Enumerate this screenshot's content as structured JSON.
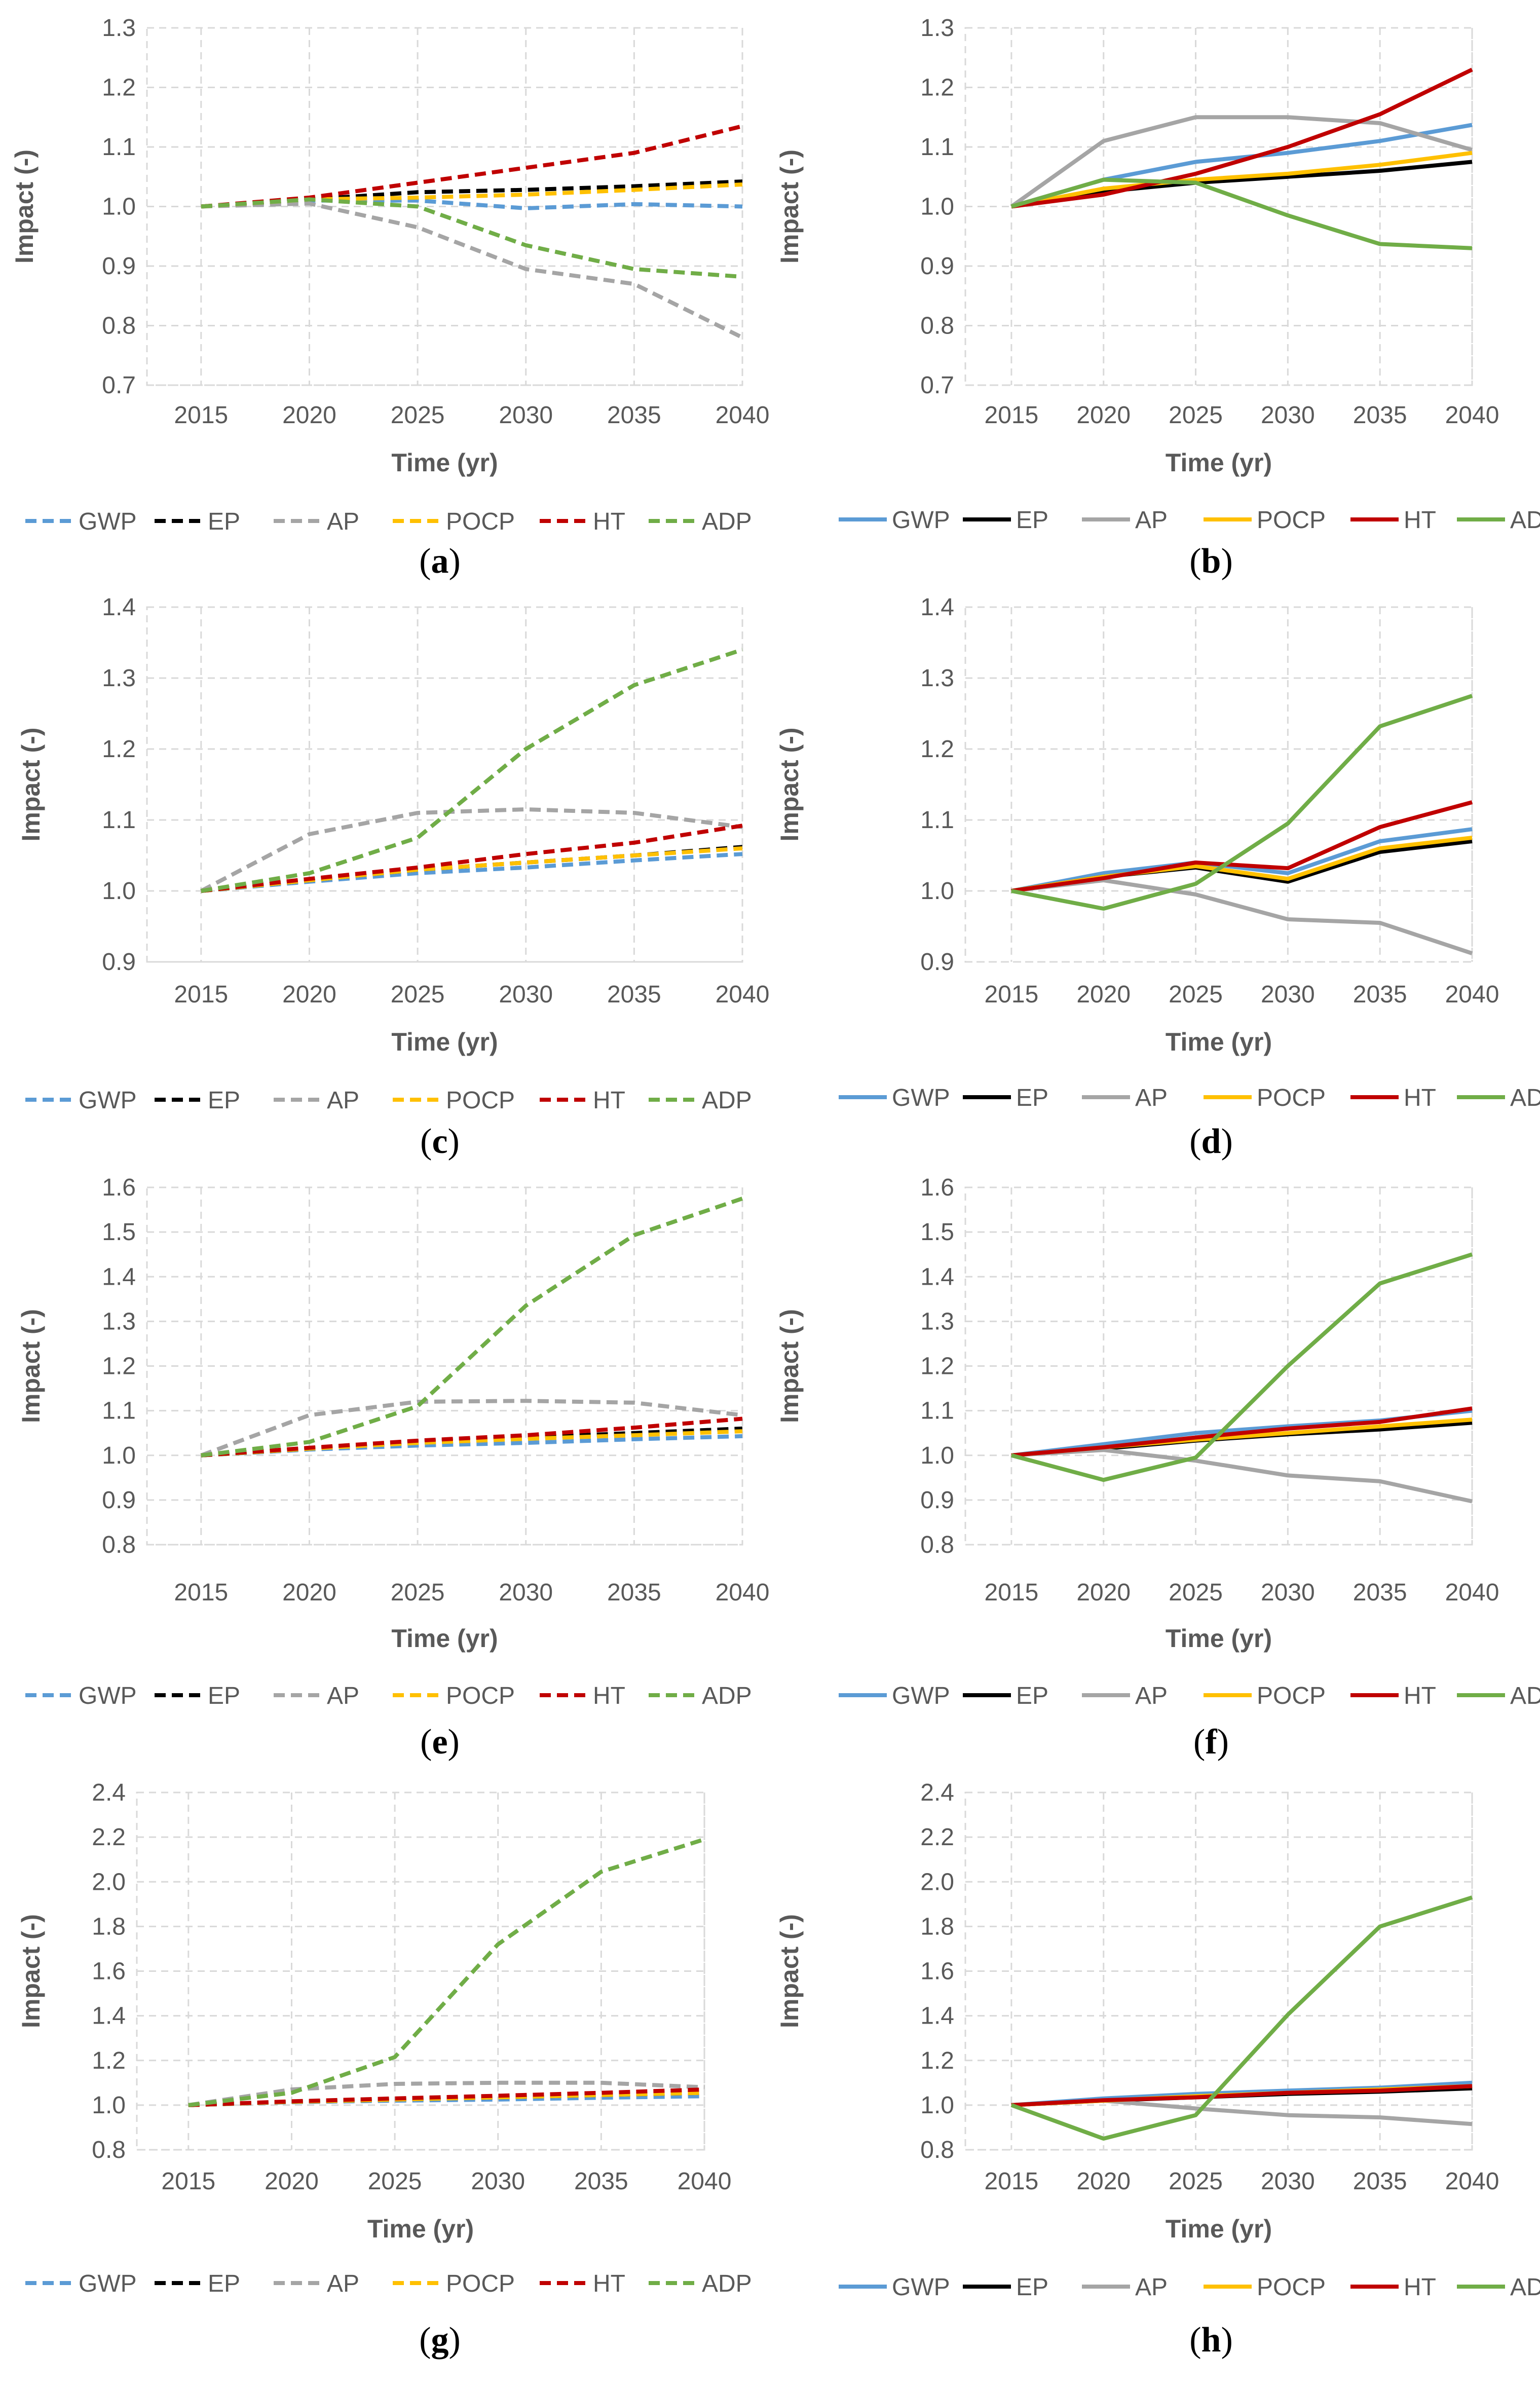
{
  "colors": {
    "GWP": "#5b9bd5",
    "EP": "#000000",
    "AP": "#a5a5a5",
    "POCP": "#ffc000",
    "HT": "#c00000",
    "ADP": "#70ad47",
    "grid": "#d9d9d9",
    "text": "#595959"
  },
  "chart_data": [
    {
      "id": "a",
      "type": "line",
      "label": "a",
      "line_style": "dashed",
      "xlabel": "Time (yr)",
      "ylabel": "Impact (-)",
      "x": [
        2015,
        2020,
        2025,
        2030,
        2035,
        2040
      ],
      "ylim": [
        0.7,
        1.3
      ],
      "yticks": [
        "0.7",
        "0.8",
        "0.9",
        "1.0",
        "1.1",
        "1.2",
        "1.3"
      ],
      "series": [
        {
          "name": "GWP",
          "values": [
            1.0,
            1.01,
            1.01,
            0.997,
            1.004,
            1.0
          ]
        },
        {
          "name": "EP",
          "values": [
            1.0,
            1.012,
            1.024,
            1.028,
            1.034,
            1.042
          ]
        },
        {
          "name": "AP",
          "values": [
            1.0,
            1.005,
            0.965,
            0.895,
            0.87,
            0.78
          ]
        },
        {
          "name": "POCP",
          "values": [
            1.0,
            1.012,
            1.015,
            1.02,
            1.028,
            1.037
          ]
        },
        {
          "name": "HT",
          "values": [
            1.0,
            1.015,
            1.04,
            1.065,
            1.09,
            1.135
          ]
        },
        {
          "name": "ADP",
          "values": [
            1.0,
            1.012,
            1.0,
            0.935,
            0.895,
            0.882
          ]
        }
      ]
    },
    {
      "id": "b",
      "type": "line",
      "label": "b",
      "line_style": "solid",
      "xlabel": "Time (yr)",
      "ylabel": "Impact (-)",
      "x": [
        2015,
        2020,
        2025,
        2030,
        2035,
        2040
      ],
      "ylim": [
        0.7,
        1.3
      ],
      "yticks": [
        "0.7",
        "0.8",
        "0.9",
        "1.0",
        "1.1",
        "1.2",
        "1.3"
      ],
      "series": [
        {
          "name": "GWP",
          "values": [
            1.0,
            1.045,
            1.075,
            1.09,
            1.11,
            1.137
          ]
        },
        {
          "name": "EP",
          "values": [
            1.0,
            1.025,
            1.04,
            1.05,
            1.06,
            1.075
          ]
        },
        {
          "name": "AP",
          "values": [
            1.0,
            1.11,
            1.15,
            1.15,
            1.14,
            1.095
          ]
        },
        {
          "name": "POCP",
          "values": [
            1.0,
            1.03,
            1.045,
            1.055,
            1.07,
            1.09
          ]
        },
        {
          "name": "HT",
          "values": [
            1.0,
            1.02,
            1.055,
            1.1,
            1.155,
            1.23
          ]
        },
        {
          "name": "ADP",
          "values": [
            1.0,
            1.045,
            1.04,
            0.985,
            0.937,
            0.93
          ]
        }
      ]
    },
    {
      "id": "c",
      "type": "line",
      "label": "c",
      "line_style": "dashed",
      "xlabel": "Time (yr)",
      "ylabel": "Impact (-)",
      "x": [
        2015,
        2020,
        2025,
        2030,
        2035,
        2040
      ],
      "ylim": [
        0.9,
        1.4
      ],
      "yticks": [
        "0.9",
        "1.0",
        "1.1",
        "1.2",
        "1.3",
        "1.4"
      ],
      "series": [
        {
          "name": "GWP",
          "values": [
            1.0,
            1.013,
            1.025,
            1.033,
            1.043,
            1.052
          ]
        },
        {
          "name": "EP",
          "values": [
            1.0,
            1.015,
            1.03,
            1.04,
            1.05,
            1.062
          ]
        },
        {
          "name": "AP",
          "values": [
            1.0,
            1.08,
            1.11,
            1.115,
            1.11,
            1.09
          ]
        },
        {
          "name": "POCP",
          "values": [
            1.0,
            1.015,
            1.03,
            1.04,
            1.05,
            1.06
          ]
        },
        {
          "name": "HT",
          "values": [
            1.0,
            1.017,
            1.033,
            1.052,
            1.068,
            1.092
          ]
        },
        {
          "name": "ADP",
          "values": [
            1.0,
            1.025,
            1.075,
            1.2,
            1.29,
            1.34
          ]
        }
      ]
    },
    {
      "id": "d",
      "type": "line",
      "label": "d",
      "line_style": "solid",
      "xlabel": "Time (yr)",
      "ylabel": "Impact (-)",
      "x": [
        2015,
        2020,
        2025,
        2030,
        2035,
        2040
      ],
      "ylim": [
        0.9,
        1.4
      ],
      "yticks": [
        "0.9",
        "1.0",
        "1.1",
        "1.2",
        "1.3",
        "1.4"
      ],
      "series": [
        {
          "name": "GWP",
          "values": [
            1.0,
            1.025,
            1.04,
            1.025,
            1.07,
            1.087
          ]
        },
        {
          "name": "EP",
          "values": [
            1.0,
            1.02,
            1.033,
            1.013,
            1.055,
            1.07
          ]
        },
        {
          "name": "AP",
          "values": [
            1.0,
            1.015,
            0.995,
            0.96,
            0.955,
            0.912
          ]
        },
        {
          "name": "POCP",
          "values": [
            1.0,
            1.02,
            1.035,
            1.017,
            1.06,
            1.075
          ]
        },
        {
          "name": "HT",
          "values": [
            1.0,
            1.018,
            1.04,
            1.032,
            1.09,
            1.125
          ]
        },
        {
          "name": "ADP",
          "values": [
            1.0,
            0.975,
            1.01,
            1.095,
            1.232,
            1.275
          ]
        }
      ]
    },
    {
      "id": "e",
      "type": "line",
      "label": "e",
      "line_style": "dashed",
      "xlabel": "Time (yr)",
      "ylabel": "Impact (-)",
      "x": [
        2015,
        2020,
        2025,
        2030,
        2035,
        2040
      ],
      "ylim": [
        0.8,
        1.6
      ],
      "yticks": [
        "0.8",
        "0.9",
        "1.0",
        "1.1",
        "1.2",
        "1.3",
        "1.4",
        "1.5",
        "1.6"
      ],
      "series": [
        {
          "name": "GWP",
          "values": [
            1.0,
            1.013,
            1.022,
            1.028,
            1.036,
            1.043
          ]
        },
        {
          "name": "EP",
          "values": [
            1.0,
            1.015,
            1.03,
            1.04,
            1.05,
            1.06
          ]
        },
        {
          "name": "AP",
          "values": [
            1.0,
            1.09,
            1.12,
            1.122,
            1.118,
            1.09
          ]
        },
        {
          "name": "POCP",
          "values": [
            1.0,
            1.015,
            1.028,
            1.037,
            1.045,
            1.054
          ]
        },
        {
          "name": "HT",
          "values": [
            1.0,
            1.017,
            1.033,
            1.045,
            1.062,
            1.082
          ]
        },
        {
          "name": "ADP",
          "values": [
            1.0,
            1.03,
            1.11,
            1.335,
            1.493,
            1.575
          ]
        }
      ]
    },
    {
      "id": "f",
      "type": "line",
      "label": "f",
      "line_style": "solid",
      "xlabel": "Time (yr)",
      "ylabel": "Impact (-)",
      "x": [
        2015,
        2020,
        2025,
        2030,
        2035,
        2040
      ],
      "ylim": [
        0.8,
        1.6
      ],
      "yticks": [
        "0.8",
        "0.9",
        "1.0",
        "1.1",
        "1.2",
        "1.3",
        "1.4",
        "1.5",
        "1.6"
      ],
      "series": [
        {
          "name": "GWP",
          "values": [
            1.0,
            1.025,
            1.05,
            1.065,
            1.078,
            1.1
          ]
        },
        {
          "name": "EP",
          "values": [
            1.0,
            1.015,
            1.033,
            1.047,
            1.058,
            1.073
          ]
        },
        {
          "name": "AP",
          "values": [
            1.0,
            1.012,
            0.988,
            0.955,
            0.942,
            0.897
          ]
        },
        {
          "name": "POCP",
          "values": [
            1.0,
            1.018,
            1.035,
            1.05,
            1.065,
            1.08
          ]
        },
        {
          "name": "HT",
          "values": [
            1.0,
            1.018,
            1.04,
            1.06,
            1.075,
            1.105
          ]
        },
        {
          "name": "ADP",
          "values": [
            1.0,
            0.945,
            0.995,
            1.2,
            1.385,
            1.45
          ]
        }
      ]
    },
    {
      "id": "g",
      "type": "line",
      "label": "g",
      "line_style": "dashed",
      "xlabel": "Time (yr)",
      "ylabel": "Impact (-)",
      "x": [
        2015,
        2020,
        2025,
        2030,
        2035,
        2040
      ],
      "ylim": [
        0.8,
        2.4
      ],
      "yticks": [
        "0.8",
        "1.0",
        "1.2",
        "1.4",
        "1.6",
        "1.8",
        "2.0",
        "2.2",
        "2.4"
      ],
      "series": [
        {
          "name": "GWP",
          "values": [
            1.0,
            1.013,
            1.02,
            1.025,
            1.033,
            1.04
          ]
        },
        {
          "name": "EP",
          "values": [
            1.0,
            1.015,
            1.025,
            1.035,
            1.045,
            1.055
          ]
        },
        {
          "name": "AP",
          "values": [
            1.0,
            1.07,
            1.095,
            1.1,
            1.1,
            1.08
          ]
        },
        {
          "name": "POCP",
          "values": [
            1.0,
            1.015,
            1.025,
            1.035,
            1.045,
            1.055
          ]
        },
        {
          "name": "HT",
          "values": [
            1.0,
            1.017,
            1.03,
            1.042,
            1.055,
            1.07
          ]
        },
        {
          "name": "ADP",
          "values": [
            1.0,
            1.055,
            1.215,
            1.72,
            2.045,
            2.19
          ]
        }
      ]
    },
    {
      "id": "h",
      "type": "line",
      "label": "h",
      "line_style": "solid",
      "xlabel": "Time (yr)",
      "ylabel": "Impact (-)",
      "x": [
        2015,
        2020,
        2025,
        2030,
        2035,
        2040
      ],
      "ylim": [
        0.8,
        2.4
      ],
      "yticks": [
        "0.8",
        "1.0",
        "1.2",
        "1.4",
        "1.6",
        "1.8",
        "2.0",
        "2.2",
        "2.4"
      ],
      "series": [
        {
          "name": "GWP",
          "values": [
            1.0,
            1.03,
            1.05,
            1.065,
            1.078,
            1.1
          ]
        },
        {
          "name": "EP",
          "values": [
            1.0,
            1.02,
            1.035,
            1.05,
            1.06,
            1.075
          ]
        },
        {
          "name": "AP",
          "values": [
            1.0,
            1.02,
            0.985,
            0.955,
            0.945,
            0.915
          ]
        },
        {
          "name": "POCP",
          "values": [
            1.0,
            1.02,
            1.04,
            1.055,
            1.07,
            1.085
          ]
        },
        {
          "name": "HT",
          "values": [
            1.0,
            1.022,
            1.035,
            1.055,
            1.065,
            1.085
          ]
        },
        {
          "name": "ADP",
          "values": [
            1.0,
            0.85,
            0.955,
            1.405,
            1.8,
            1.93
          ]
        }
      ]
    }
  ]
}
